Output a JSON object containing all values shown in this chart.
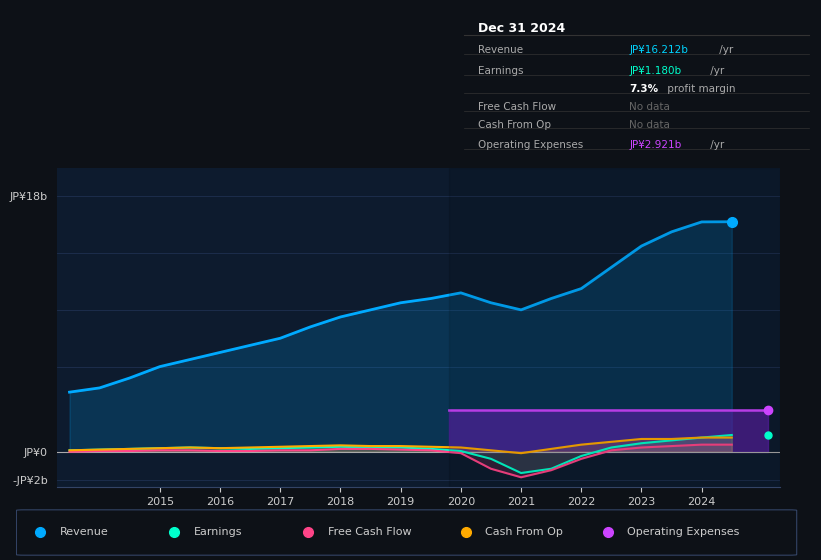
{
  "background_color": "#0d1117",
  "chart_bg": "#0d1b2e",
  "grid_color": "#1e3050",
  "years": [
    2013.5,
    2014.0,
    2014.5,
    2015.0,
    2015.5,
    2016.0,
    2016.5,
    2017.0,
    2017.5,
    2018.0,
    2018.5,
    2019.0,
    2019.5,
    2020.0,
    2020.5,
    2021.0,
    2021.5,
    2022.0,
    2022.5,
    2023.0,
    2023.5,
    2024.0,
    2024.5
  ],
  "revenue": [
    4.2,
    4.5,
    5.2,
    6.0,
    6.5,
    7.0,
    7.5,
    8.0,
    8.8,
    9.5,
    10.0,
    10.5,
    10.8,
    11.2,
    10.5,
    10.0,
    10.8,
    11.5,
    13.0,
    14.5,
    15.5,
    16.2,
    16.212
  ],
  "earnings": [
    0.1,
    0.15,
    0.2,
    0.25,
    0.3,
    0.25,
    0.2,
    0.25,
    0.3,
    0.35,
    0.3,
    0.3,
    0.2,
    0.05,
    -0.5,
    -1.5,
    -1.2,
    -0.3,
    0.3,
    0.6,
    0.8,
    1.0,
    1.18
  ],
  "free_cash_flow": [
    0.0,
    0.05,
    0.05,
    0.1,
    0.1,
    0.05,
    0.05,
    0.1,
    0.1,
    0.2,
    0.2,
    0.15,
    0.1,
    -0.1,
    -1.2,
    -1.8,
    -1.3,
    -0.5,
    0.1,
    0.3,
    0.4,
    0.5,
    0.5
  ],
  "cash_from_op": [
    0.1,
    0.15,
    0.2,
    0.25,
    0.3,
    0.25,
    0.3,
    0.35,
    0.4,
    0.45,
    0.4,
    0.4,
    0.35,
    0.3,
    0.1,
    -0.1,
    0.2,
    0.5,
    0.7,
    0.9,
    0.9,
    1.0,
    1.0
  ],
  "op_expenses_shade_start": 2019.8,
  "op_expenses_shade_end": 2025.1,
  "op_expenses_shade_top": 2.921,
  "ylim": [
    -2.5,
    20.0
  ],
  "xlim": [
    2013.3,
    2025.3
  ],
  "xticks": [
    2015,
    2016,
    2017,
    2018,
    2019,
    2020,
    2021,
    2022,
    2023,
    2024
  ],
  "revenue_color": "#00aaff",
  "earnings_color": "#00ffcc",
  "fcf_color": "#ff4488",
  "cfo_color": "#ffaa00",
  "opex_color": "#cc44ff",
  "legend_items": [
    {
      "label": "Revenue",
      "color": "#00aaff"
    },
    {
      "label": "Earnings",
      "color": "#00ffcc"
    },
    {
      "label": "Free Cash Flow",
      "color": "#ff4488"
    },
    {
      "label": "Cash From Op",
      "color": "#ffaa00"
    },
    {
      "label": "Operating Expenses",
      "color": "#cc44ff"
    }
  ],
  "info_box": {
    "date": "Dec 31 2024",
    "rows": [
      {
        "label": "Revenue",
        "value": "JP¥16.212b",
        "unit": " /yr",
        "value_color": "#00d4ff",
        "nodata": false,
        "bold": false
      },
      {
        "label": "Earnings",
        "value": "JP¥1.180b",
        "unit": " /yr",
        "value_color": "#00ffcc",
        "nodata": false,
        "bold": false
      },
      {
        "label": "",
        "value": "7.3%",
        "unit": " profit margin",
        "value_color": "#ffffff",
        "nodata": false,
        "bold": true
      },
      {
        "label": "Free Cash Flow",
        "value": "No data",
        "unit": "",
        "value_color": "#666666",
        "nodata": true,
        "bold": false
      },
      {
        "label": "Cash From Op",
        "value": "No data",
        "unit": "",
        "value_color": "#666666",
        "nodata": true,
        "bold": false
      },
      {
        "label": "Operating Expenses",
        "value": "JP¥2.921b",
        "unit": " /yr",
        "value_color": "#cc44ff",
        "nodata": false,
        "bold": false
      }
    ]
  }
}
